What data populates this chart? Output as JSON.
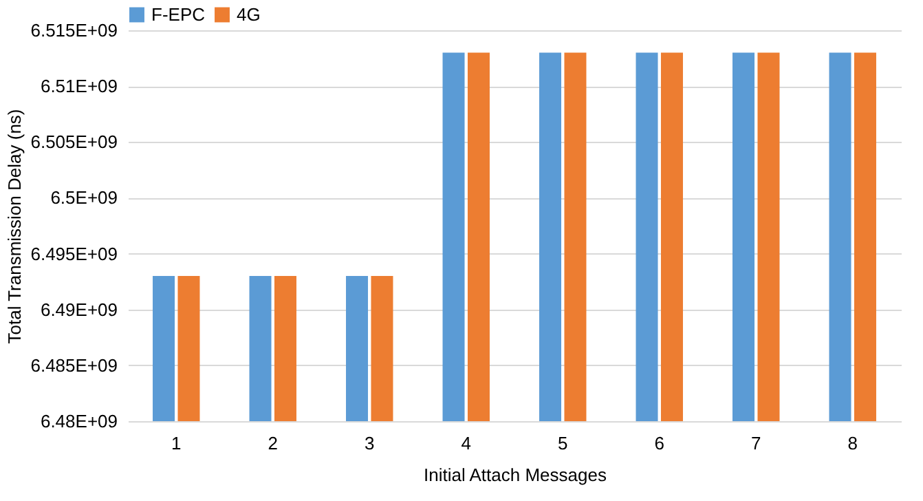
{
  "chart_data": {
    "type": "bar",
    "xlabel": "Initial Attach Messages",
    "ylabel": "Total Transmission Delay (ns)",
    "categories": [
      "1",
      "2",
      "3",
      "4",
      "5",
      "6",
      "7",
      "8"
    ],
    "series": [
      {
        "name": "F-EPC",
        "color": "#5b9bd5",
        "values": [
          6493000000,
          6493000000,
          6493000000,
          6513000000,
          6513000000,
          6513000000,
          6513000000,
          6513000000
        ]
      },
      {
        "name": "4G",
        "color": "#ed7d31",
        "values": [
          6493000000,
          6493000000,
          6493000000,
          6513000000,
          6513000000,
          6513000000,
          6513000000,
          6513000000
        ]
      }
    ],
    "ylim": [
      6480000000,
      6515000000
    ],
    "yticks": [
      {
        "value": 6480000000,
        "label": "6.48E+09"
      },
      {
        "value": 6485000000,
        "label": "6.485E+09"
      },
      {
        "value": 6490000000,
        "label": "6.49E+09"
      },
      {
        "value": 6495000000,
        "label": "6.495E+09"
      },
      {
        "value": 6500000000,
        "label": "6.5E+09"
      },
      {
        "value": 6505000000,
        "label": "6.505E+09"
      },
      {
        "value": 6510000000,
        "label": "6.51E+09"
      },
      {
        "value": 6515000000,
        "label": "6.515E+09"
      }
    ],
    "grid": "y",
    "legend": "top"
  }
}
